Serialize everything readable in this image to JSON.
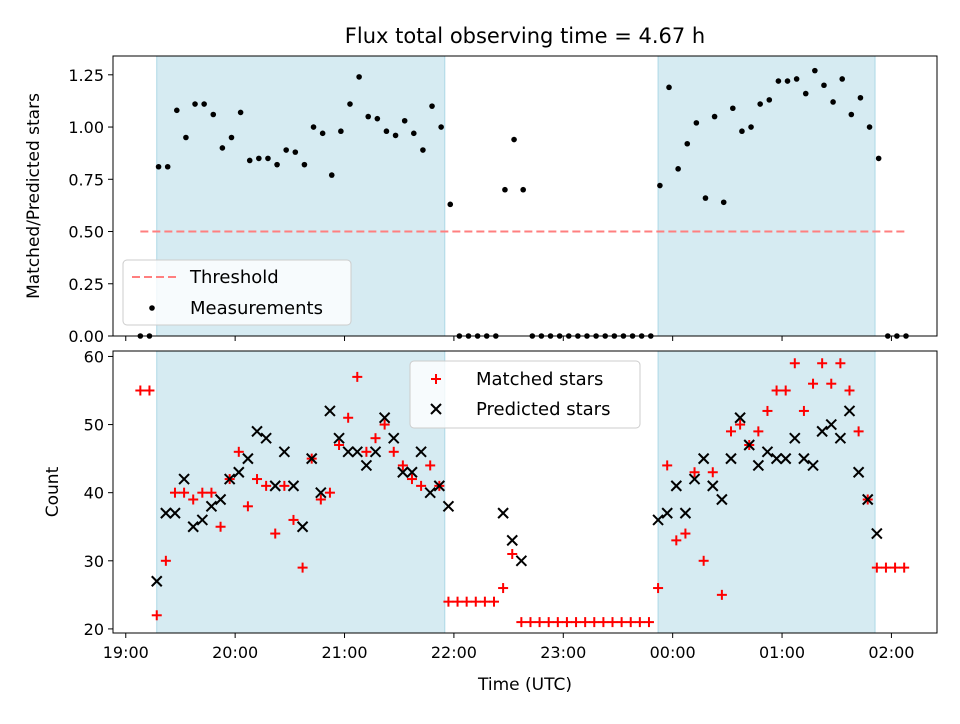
{
  "chart_data": [
    {
      "type": "scatter",
      "title": "Flux total observing time = 4.67 h",
      "xlabel": "",
      "ylabel": "Matched/Predicted stars",
      "xlim": [
        "18:53",
        "02:25"
      ],
      "ylim": [
        0,
        1.34
      ],
      "yticks": [
        0.0,
        0.25,
        0.5,
        0.75,
        1.0,
        1.25
      ],
      "ytick_labels": [
        "0.00",
        "0.25",
        "0.50",
        "0.75",
        "1.00",
        "1.25"
      ],
      "shaded_intervals": [
        [
          "19:17",
          "21:55"
        ],
        [
          "23:52",
          "01:51"
        ]
      ],
      "shade_color": "#add8e6",
      "threshold": {
        "name": "Threshold",
        "value": 0.5,
        "x_range": [
          "19:08",
          "02:08"
        ],
        "color": "#ff7f7f",
        "style": "dashed"
      },
      "series": [
        {
          "name": "Measurements",
          "color": "#000000",
          "marker": "dot",
          "points": [
            [
              "19:08",
              0.0
            ],
            [
              "19:13",
              0.0
            ],
            [
              "19:18",
              0.81
            ],
            [
              "19:23",
              0.81
            ],
            [
              "19:28",
              1.08
            ],
            [
              "19:33",
              0.95
            ],
            [
              "19:38",
              1.11
            ],
            [
              "19:43",
              1.11
            ],
            [
              "19:48",
              1.06
            ],
            [
              "19:53",
              0.9
            ],
            [
              "19:58",
              0.95
            ],
            [
              "20:03",
              1.07
            ],
            [
              "20:08",
              0.84
            ],
            [
              "20:13",
              0.85
            ],
            [
              "20:18",
              0.85
            ],
            [
              "20:23",
              0.82
            ],
            [
              "20:28",
              0.89
            ],
            [
              "20:33",
              0.88
            ],
            [
              "20:38",
              0.82
            ],
            [
              "20:43",
              1.0
            ],
            [
              "20:48",
              0.97
            ],
            [
              "20:53",
              0.77
            ],
            [
              "20:58",
              0.98
            ],
            [
              "21:03",
              1.11
            ],
            [
              "21:08",
              1.24
            ],
            [
              "21:13",
              1.05
            ],
            [
              "21:18",
              1.04
            ],
            [
              "21:23",
              0.98
            ],
            [
              "21:28",
              0.96
            ],
            [
              "21:33",
              1.03
            ],
            [
              "21:38",
              0.97
            ],
            [
              "21:43",
              0.89
            ],
            [
              "21:48",
              1.1
            ],
            [
              "21:53",
              1.0
            ],
            [
              "21:58",
              0.63
            ],
            [
              "22:03",
              0.0
            ],
            [
              "22:08",
              0.0
            ],
            [
              "22:13",
              0.0
            ],
            [
              "22:18",
              0.0
            ],
            [
              "22:23",
              0.0
            ],
            [
              "22:28",
              0.7
            ],
            [
              "22:33",
              0.94
            ],
            [
              "22:38",
              0.7
            ],
            [
              "22:43",
              0.0
            ],
            [
              "22:48",
              0.0
            ],
            [
              "22:53",
              0.0
            ],
            [
              "22:58",
              0.0
            ],
            [
              "23:03",
              0.0
            ],
            [
              "23:08",
              0.0
            ],
            [
              "23:13",
              0.0
            ],
            [
              "23:18",
              0.0
            ],
            [
              "23:23",
              0.0
            ],
            [
              "23:28",
              0.0
            ],
            [
              "23:33",
              0.0
            ],
            [
              "23:38",
              0.0
            ],
            [
              "23:43",
              0.0
            ],
            [
              "23:48",
              0.0
            ],
            [
              "23:53",
              0.72
            ],
            [
              "23:58",
              1.19
            ],
            [
              "00:03",
              0.8
            ],
            [
              "00:08",
              0.92
            ],
            [
              "00:13",
              1.02
            ],
            [
              "00:18",
              0.66
            ],
            [
              "00:23",
              1.05
            ],
            [
              "00:28",
              0.64
            ],
            [
              "00:33",
              1.09
            ],
            [
              "00:38",
              0.98
            ],
            [
              "00:43",
              1.0
            ],
            [
              "00:48",
              1.11
            ],
            [
              "00:53",
              1.13
            ],
            [
              "00:58",
              1.22
            ],
            [
              "01:03",
              1.22
            ],
            [
              "01:08",
              1.23
            ],
            [
              "01:13",
              1.16
            ],
            [
              "01:18",
              1.27
            ],
            [
              "01:23",
              1.2
            ],
            [
              "01:28",
              1.12
            ],
            [
              "01:33",
              1.23
            ],
            [
              "01:38",
              1.06
            ],
            [
              "01:43",
              1.14
            ],
            [
              "01:48",
              1.0
            ],
            [
              "01:53",
              0.85
            ],
            [
              "01:58",
              0.0
            ],
            [
              "02:03",
              0.0
            ],
            [
              "02:08",
              0.0
            ]
          ]
        }
      ],
      "legend": {
        "placement": "lower-left",
        "entries": [
          "Threshold",
          "Measurements"
        ]
      }
    },
    {
      "type": "scatter",
      "title": "",
      "xlabel": "Time (UTC)",
      "ylabel": "Count",
      "xlim": [
        "18:53",
        "02:25"
      ],
      "ylim": [
        19.4,
        60.8
      ],
      "yticks": [
        20,
        30,
        40,
        50,
        60
      ],
      "ytick_labels": [
        "20",
        "30",
        "40",
        "50",
        "60"
      ],
      "xticks": [
        "19:00",
        "20:00",
        "21:00",
        "22:00",
        "23:00",
        "00:00",
        "01:00",
        "02:00"
      ],
      "xtick_labels": [
        "19:00",
        "20:00",
        "21:00",
        "22:00",
        "23:00",
        "00:00",
        "01:00",
        "02:00"
      ],
      "shaded_intervals": [
        [
          "19:17",
          "21:55"
        ],
        [
          "23:52",
          "01:51"
        ]
      ],
      "shade_color": "#add8e6",
      "series": [
        {
          "name": "Matched stars",
          "color": "#ff0000",
          "marker": "plus",
          "points": [
            [
              "19:08",
              55
            ],
            [
              "19:13",
              55
            ],
            [
              "19:17",
              22
            ],
            [
              "19:22",
              30
            ],
            [
              "19:27",
              40
            ],
            [
              "19:32",
              40
            ],
            [
              "19:37",
              39
            ],
            [
              "19:42",
              40
            ],
            [
              "19:47",
              40
            ],
            [
              "19:52",
              35
            ],
            [
              "19:57",
              42
            ],
            [
              "20:02",
              46
            ],
            [
              "20:07",
              38
            ],
            [
              "20:12",
              42
            ],
            [
              "20:17",
              41
            ],
            [
              "20:22",
              34
            ],
            [
              "20:27",
              41
            ],
            [
              "20:32",
              36
            ],
            [
              "20:37",
              29
            ],
            [
              "20:42",
              45
            ],
            [
              "20:47",
              39
            ],
            [
              "20:52",
              40
            ],
            [
              "20:57",
              47
            ],
            [
              "21:02",
              51
            ],
            [
              "21:07",
              57
            ],
            [
              "21:12",
              46
            ],
            [
              "21:17",
              48
            ],
            [
              "21:22",
              50
            ],
            [
              "21:27",
              46
            ],
            [
              "21:32",
              44
            ],
            [
              "21:37",
              42
            ],
            [
              "21:42",
              41
            ],
            [
              "21:47",
              44
            ],
            [
              "21:52",
              41
            ],
            [
              "21:57",
              24
            ],
            [
              "22:02",
              24
            ],
            [
              "22:07",
              24
            ],
            [
              "22:12",
              24
            ],
            [
              "22:17",
              24
            ],
            [
              "22:22",
              24
            ],
            [
              "22:27",
              26
            ],
            [
              "22:32",
              31
            ],
            [
              "22:37",
              21
            ],
            [
              "22:42",
              21
            ],
            [
              "22:47",
              21
            ],
            [
              "22:52",
              21
            ],
            [
              "22:57",
              21
            ],
            [
              "23:02",
              21
            ],
            [
              "23:07",
              21
            ],
            [
              "23:12",
              21
            ],
            [
              "23:17",
              21
            ],
            [
              "23:22",
              21
            ],
            [
              "23:27",
              21
            ],
            [
              "23:32",
              21
            ],
            [
              "23:37",
              21
            ],
            [
              "23:42",
              21
            ],
            [
              "23:47",
              21
            ],
            [
              "23:52",
              26
            ],
            [
              "23:57",
              44
            ],
            [
              "00:02",
              33
            ],
            [
              "00:07",
              34
            ],
            [
              "00:12",
              43
            ],
            [
              "00:17",
              30
            ],
            [
              "00:22",
              43
            ],
            [
              "00:27",
              25
            ],
            [
              "00:32",
              49
            ],
            [
              "00:37",
              50
            ],
            [
              "00:42",
              47
            ],
            [
              "00:47",
              49
            ],
            [
              "00:52",
              52
            ],
            [
              "00:57",
              55
            ],
            [
              "01:02",
              55
            ],
            [
              "01:07",
              59
            ],
            [
              "01:12",
              52
            ],
            [
              "01:17",
              56
            ],
            [
              "01:22",
              59
            ],
            [
              "01:27",
              56
            ],
            [
              "01:32",
              59
            ],
            [
              "01:37",
              55
            ],
            [
              "01:42",
              49
            ],
            [
              "01:47",
              39
            ],
            [
              "01:52",
              29
            ],
            [
              "01:57",
              29
            ],
            [
              "02:02",
              29
            ],
            [
              "02:07",
              29
            ]
          ]
        },
        {
          "name": "Predicted stars",
          "color": "#000000",
          "marker": "x",
          "points": [
            [
              "19:17",
              27
            ],
            [
              "19:22",
              37
            ],
            [
              "19:27",
              37
            ],
            [
              "19:32",
              42
            ],
            [
              "19:37",
              35
            ],
            [
              "19:42",
              36
            ],
            [
              "19:47",
              38
            ],
            [
              "19:52",
              39
            ],
            [
              "19:57",
              42
            ],
            [
              "20:02",
              43
            ],
            [
              "20:07",
              45
            ],
            [
              "20:12",
              49
            ],
            [
              "20:17",
              48
            ],
            [
              "20:22",
              41
            ],
            [
              "20:27",
              46
            ],
            [
              "20:32",
              41
            ],
            [
              "20:37",
              35
            ],
            [
              "20:42",
              45
            ],
            [
              "20:47",
              40
            ],
            [
              "20:52",
              52
            ],
            [
              "20:57",
              48
            ],
            [
              "21:02",
              46
            ],
            [
              "21:07",
              46
            ],
            [
              "21:12",
              44
            ],
            [
              "21:17",
              46
            ],
            [
              "21:22",
              51
            ],
            [
              "21:27",
              48
            ],
            [
              "21:32",
              43
            ],
            [
              "21:37",
              43
            ],
            [
              "21:42",
              46
            ],
            [
              "21:47",
              40
            ],
            [
              "21:52",
              41
            ],
            [
              "21:57",
              38
            ],
            [
              "22:27",
              37
            ],
            [
              "22:32",
              33
            ],
            [
              "22:37",
              30
            ],
            [
              "23:52",
              36
            ],
            [
              "23:57",
              37
            ],
            [
              "00:02",
              41
            ],
            [
              "00:07",
              37
            ],
            [
              "00:12",
              42
            ],
            [
              "00:17",
              45
            ],
            [
              "00:22",
              41
            ],
            [
              "00:27",
              39
            ],
            [
              "00:32",
              45
            ],
            [
              "00:37",
              51
            ],
            [
              "00:42",
              47
            ],
            [
              "00:47",
              44
            ],
            [
              "00:52",
              46
            ],
            [
              "00:57",
              45
            ],
            [
              "01:02",
              45
            ],
            [
              "01:07",
              48
            ],
            [
              "01:12",
              45
            ],
            [
              "01:17",
              44
            ],
            [
              "01:22",
              49
            ],
            [
              "01:27",
              50
            ],
            [
              "01:32",
              48
            ],
            [
              "01:37",
              52
            ],
            [
              "01:42",
              43
            ],
            [
              "01:47",
              39
            ],
            [
              "01:52",
              34
            ]
          ]
        }
      ],
      "legend": {
        "placement": "upper-center",
        "entries": [
          "Matched stars",
          "Predicted stars"
        ]
      }
    }
  ]
}
